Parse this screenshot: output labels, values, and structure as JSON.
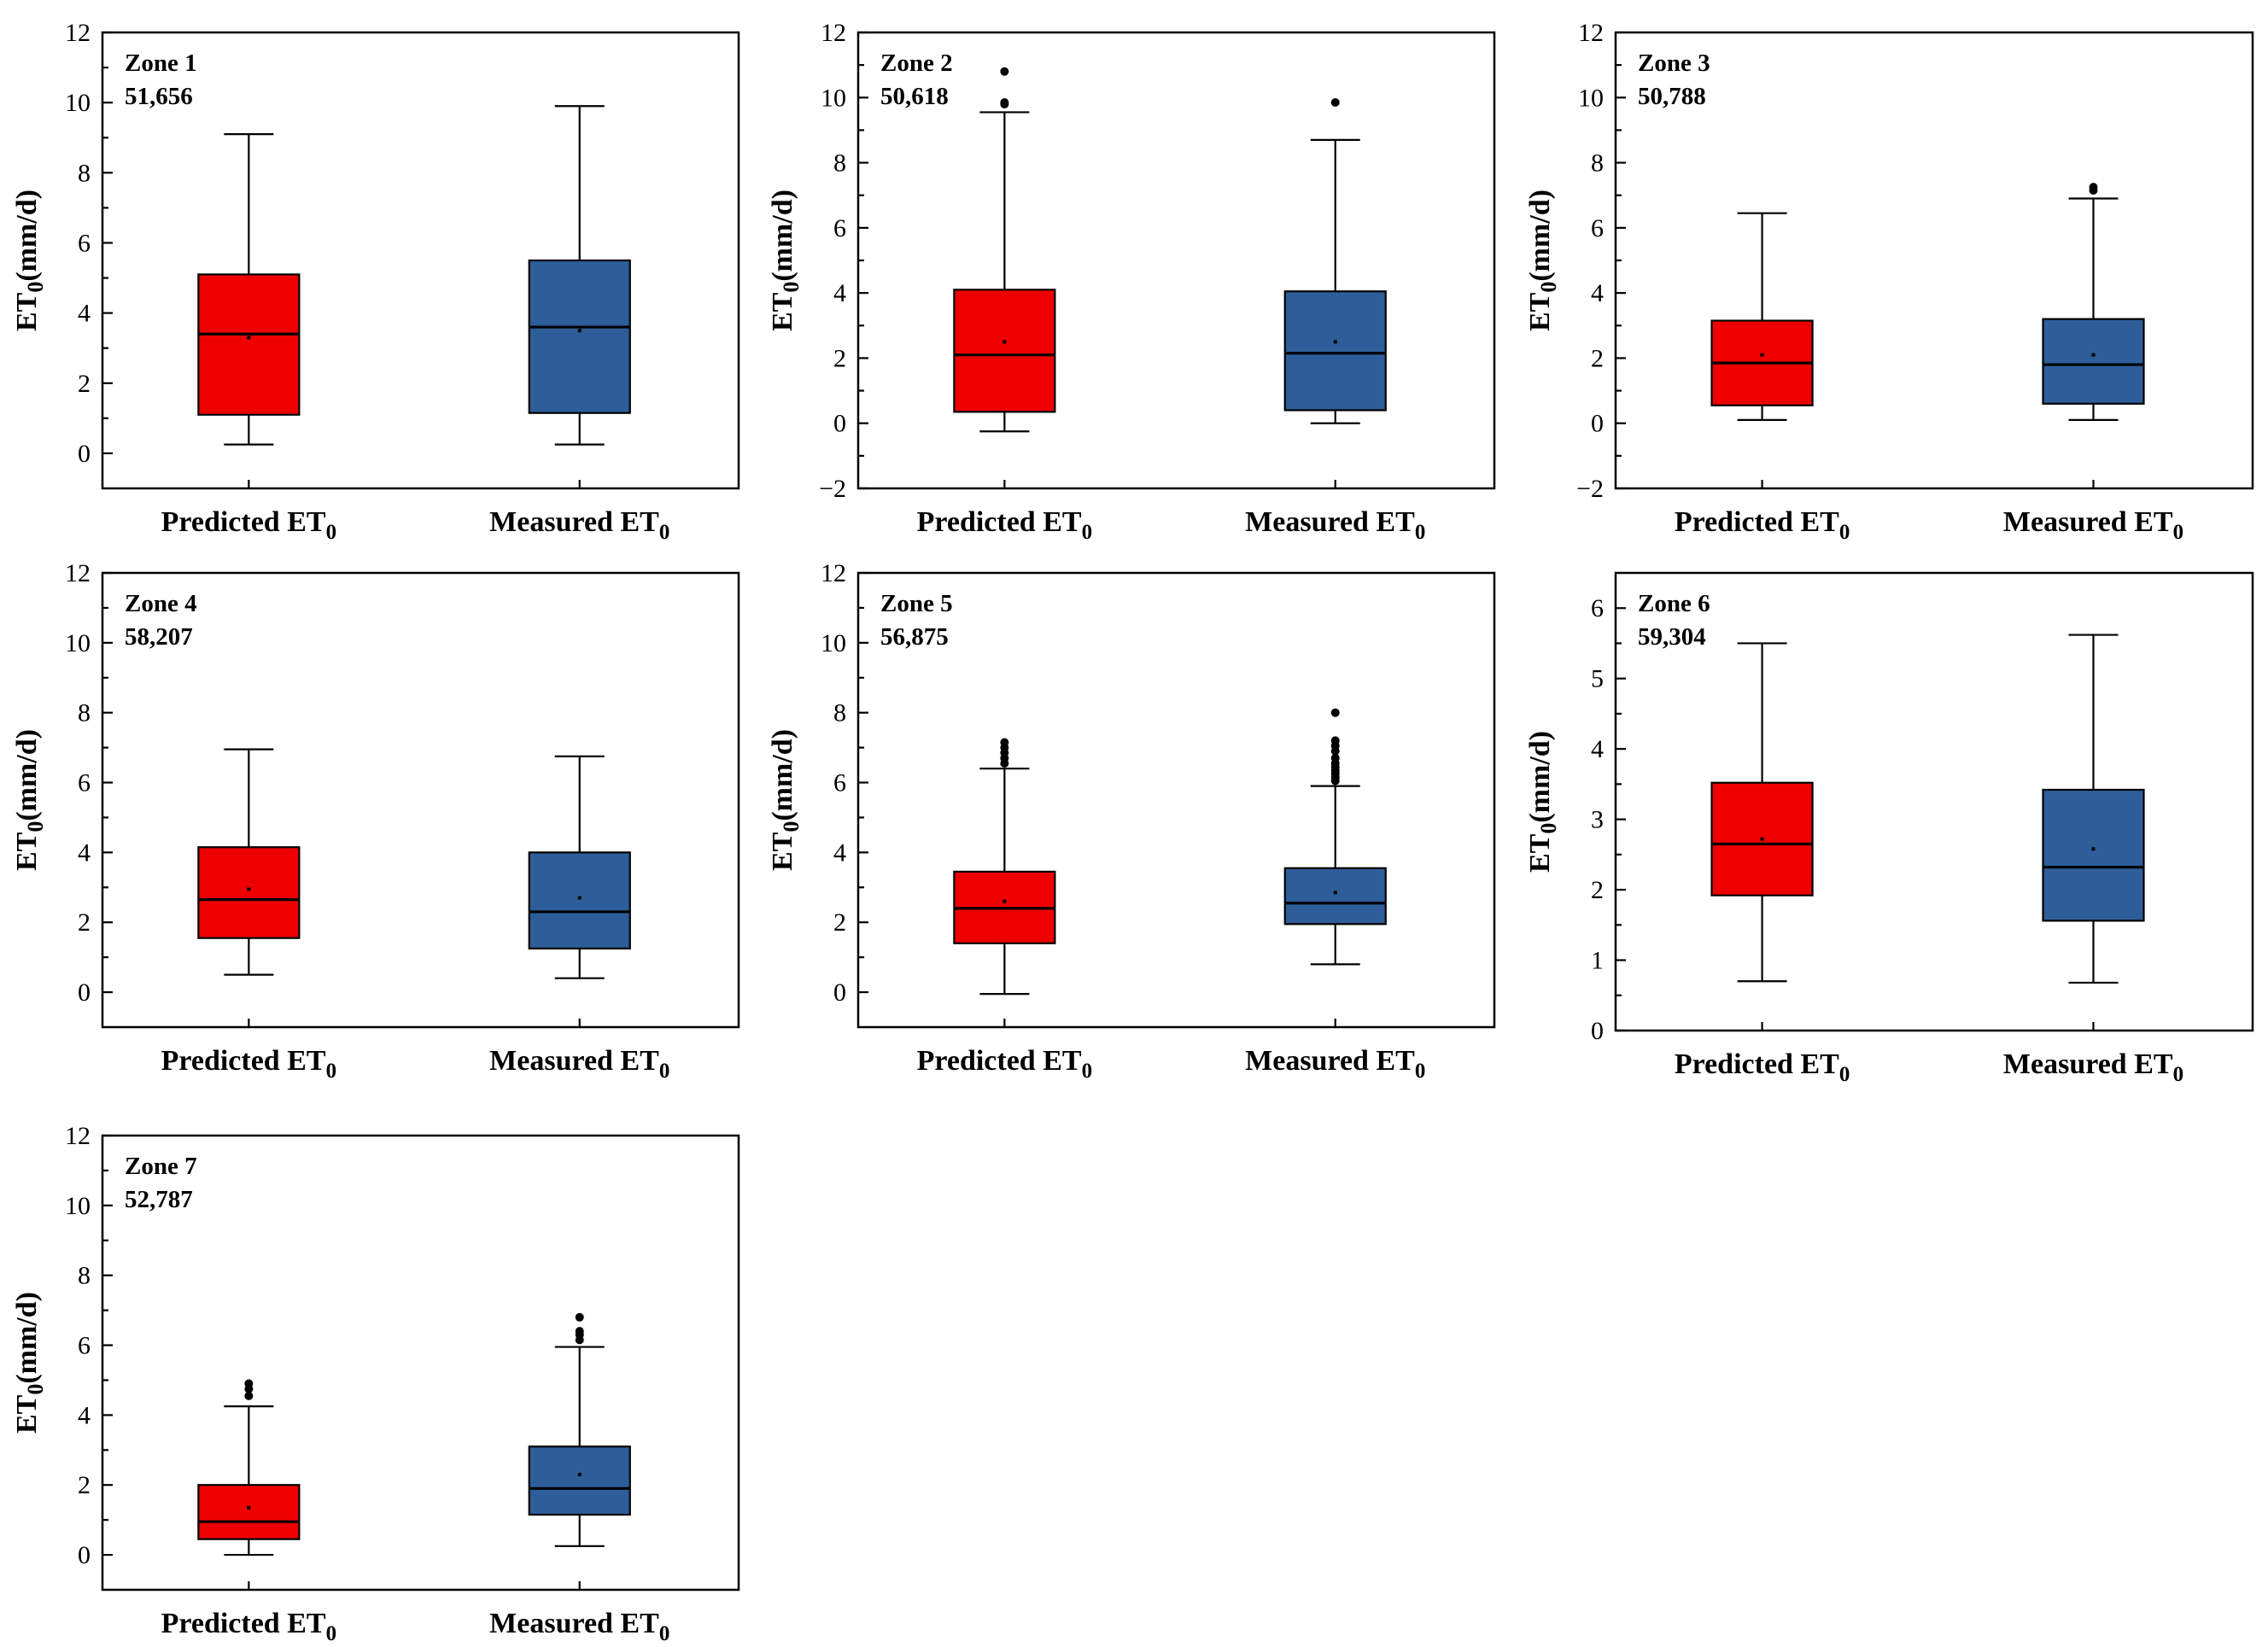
{
  "chart_data": [
    {
      "type": "box",
      "zone_label": "Zone 1",
      "count_label": "51,656",
      "ylabel": "ET0(mm/d)",
      "ylim": [
        -1,
        12
      ],
      "yticks": [
        0,
        2,
        4,
        6,
        8,
        10,
        12
      ],
      "categories": [
        "Predicted ET0",
        "Measured ET0"
      ],
      "series": [
        {
          "name": "Predicted ET0",
          "color": "#ee0000",
          "whisker_low": 0.25,
          "q1": 1.1,
          "median": 3.4,
          "mean": 3.3,
          "q3": 5.1,
          "whisker_high": 9.1,
          "outliers": []
        },
        {
          "name": "Measured ET0",
          "color": "#2e5e9a",
          "whisker_low": 0.25,
          "q1": 1.15,
          "median": 3.6,
          "mean": 3.5,
          "q3": 5.5,
          "whisker_high": 9.9,
          "outliers": []
        }
      ]
    },
    {
      "type": "box",
      "zone_label": "Zone 2",
      "count_label": "50,618",
      "ylabel": "ET0(mm/d)",
      "ylim": [
        -2,
        12
      ],
      "yticks": [
        -2,
        0,
        2,
        4,
        6,
        8,
        10,
        12
      ],
      "categories": [
        "Predicted ET0",
        "Measured ET0"
      ],
      "series": [
        {
          "name": "Predicted ET0",
          "color": "#ee0000",
          "whisker_low": -0.25,
          "q1": 0.35,
          "median": 2.1,
          "mean": 2.5,
          "q3": 4.1,
          "whisker_high": 9.55,
          "outliers": [
            9.8,
            9.85,
            10.8
          ]
        },
        {
          "name": "Measured ET0",
          "color": "#2e5e9a",
          "whisker_low": 0.0,
          "q1": 0.4,
          "median": 2.15,
          "mean": 2.5,
          "q3": 4.05,
          "whisker_high": 8.7,
          "outliers": [
            9.85
          ]
        }
      ]
    },
    {
      "type": "box",
      "zone_label": "Zone 3",
      "count_label": "50,788",
      "ylabel": "ET0(mm/d)",
      "ylim": [
        -2,
        12
      ],
      "yticks": [
        -2,
        0,
        2,
        4,
        6,
        8,
        10,
        12
      ],
      "categories": [
        "Predicted ET0",
        "Measured ET0"
      ],
      "series": [
        {
          "name": "Predicted ET0",
          "color": "#ee0000",
          "whisker_low": 0.1,
          "q1": 0.55,
          "median": 1.85,
          "mean": 2.1,
          "q3": 3.15,
          "whisker_high": 6.45,
          "outliers": []
        },
        {
          "name": "Measured ET0",
          "color": "#2e5e9a",
          "whisker_low": 0.1,
          "q1": 0.6,
          "median": 1.8,
          "mean": 2.1,
          "q3": 3.2,
          "whisker_high": 6.9,
          "outliers": [
            7.15,
            7.25
          ]
        }
      ]
    },
    {
      "type": "box",
      "zone_label": "Zone 4",
      "count_label": "58,207",
      "ylabel": "ET0(mm/d)",
      "ylim": [
        -1,
        12
      ],
      "yticks": [
        0,
        2,
        4,
        6,
        8,
        10,
        12
      ],
      "categories": [
        "Predicted ET0",
        "Measured ET0"
      ],
      "series": [
        {
          "name": "Predicted ET0",
          "color": "#ee0000",
          "whisker_low": 0.5,
          "q1": 1.55,
          "median": 2.65,
          "mean": 2.95,
          "q3": 4.15,
          "whisker_high": 6.95,
          "outliers": []
        },
        {
          "name": "Measured ET0",
          "color": "#2e5e9a",
          "whisker_low": 0.4,
          "q1": 1.25,
          "median": 2.3,
          "mean": 2.7,
          "q3": 4.0,
          "whisker_high": 6.75,
          "outliers": []
        }
      ]
    },
    {
      "type": "box",
      "zone_label": "Zone 5",
      "count_label": "56,875",
      "ylabel": "ET0(mm/d)",
      "ylim": [
        -1,
        12
      ],
      "yticks": [
        0,
        2,
        4,
        6,
        8,
        10,
        12
      ],
      "categories": [
        "Predicted ET0",
        "Measured ET0"
      ],
      "series": [
        {
          "name": "Predicted ET0",
          "color": "#ee0000",
          "whisker_low": -0.05,
          "q1": 1.4,
          "median": 2.4,
          "mean": 2.6,
          "q3": 3.45,
          "whisker_high": 6.4,
          "outliers": [
            6.55,
            6.7,
            6.85,
            7.0,
            7.15
          ]
        },
        {
          "name": "Measured ET0",
          "color": "#2e5e9a",
          "whisker_low": 0.8,
          "q1": 1.95,
          "median": 2.55,
          "mean": 2.85,
          "q3": 3.55,
          "whisker_high": 5.9,
          "outliers": [
            6.05,
            6.15,
            6.25,
            6.35,
            6.45,
            6.55,
            6.7,
            6.9,
            7.05,
            7.2,
            8.0
          ]
        }
      ]
    },
    {
      "type": "box",
      "zone_label": "Zone 6",
      "count_label": "59,304",
      "ylabel": "ET0(mm/d)",
      "ylim": [
        0,
        6.5
      ],
      "yticks": [
        0,
        1,
        2,
        3,
        4,
        5,
        6
      ],
      "categories": [
        "Predicted ET0",
        "Measured ET0"
      ],
      "series": [
        {
          "name": "Predicted ET0",
          "color": "#ee0000",
          "whisker_low": 0.7,
          "q1": 1.92,
          "median": 2.65,
          "mean": 2.72,
          "q3": 3.52,
          "whisker_high": 5.5,
          "outliers": []
        },
        {
          "name": "Measured ET0",
          "color": "#2e5e9a",
          "whisker_low": 0.68,
          "q1": 1.56,
          "median": 2.32,
          "mean": 2.58,
          "q3": 3.42,
          "whisker_high": 5.62,
          "outliers": []
        }
      ]
    },
    {
      "type": "box",
      "zone_label": "Zone 7",
      "count_label": "52,787",
      "ylabel": "ET0(mm/d)",
      "ylim": [
        -1,
        12
      ],
      "yticks": [
        0,
        2,
        4,
        6,
        8,
        10,
        12
      ],
      "categories": [
        "Predicted ET0",
        "Measured ET0"
      ],
      "series": [
        {
          "name": "Predicted ET0",
          "color": "#ee0000",
          "whisker_low": 0.0,
          "q1": 0.45,
          "median": 0.95,
          "mean": 1.35,
          "q3": 2.0,
          "whisker_high": 4.25,
          "outliers": [
            4.55,
            4.75,
            4.9
          ]
        },
        {
          "name": "Measured ET0",
          "color": "#2e5e9a",
          "whisker_low": 0.25,
          "q1": 1.15,
          "median": 1.9,
          "mean": 2.3,
          "q3": 3.1,
          "whisker_high": 5.95,
          "outliers": [
            6.15,
            6.3,
            6.4,
            6.8
          ]
        }
      ]
    }
  ]
}
